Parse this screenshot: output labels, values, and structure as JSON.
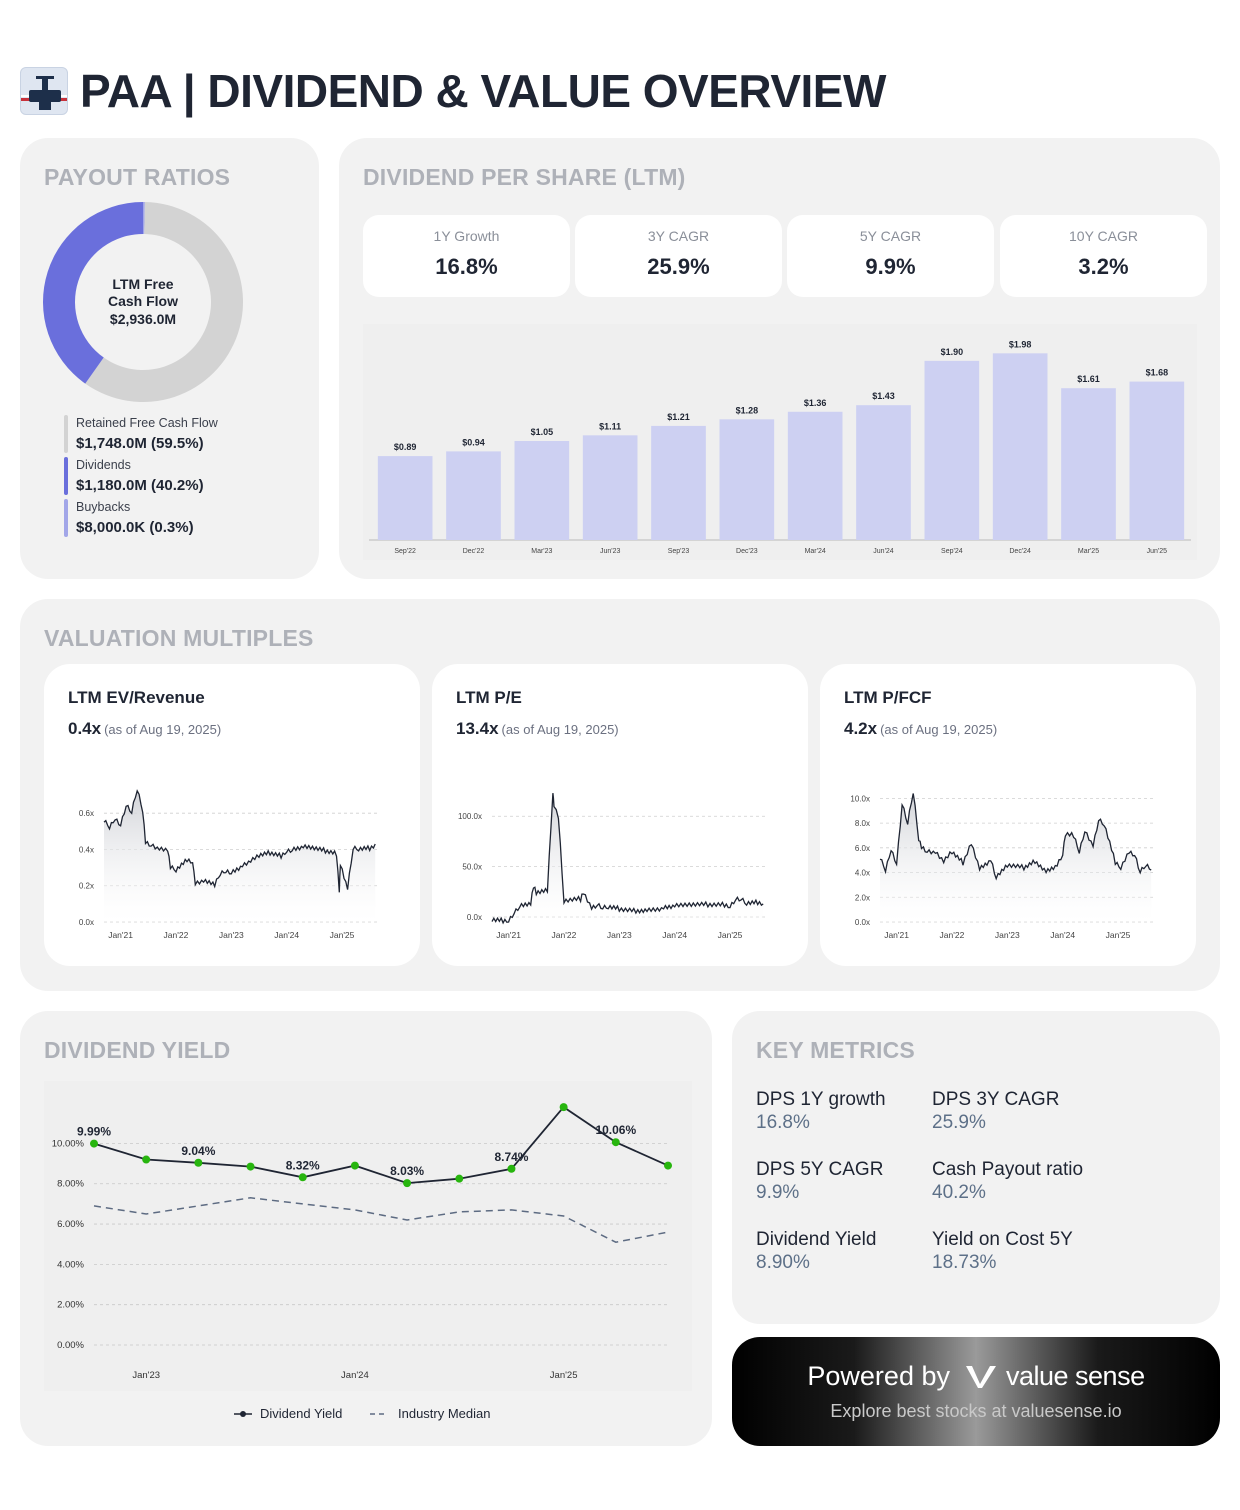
{
  "header": {
    "title": "PAA | DIVIDEND & VALUE OVERVIEW",
    "logo_icon": "pipeline-logo-icon"
  },
  "payout": {
    "title": "PAYOUT RATIOS",
    "center_label_1": "LTM Free",
    "center_label_2": "Cash Flow",
    "center_value": "$2,936.0M",
    "items": [
      {
        "label": "Retained Free Cash Flow",
        "value": "$1,748.0M (59.5%)",
        "pct": 59.5,
        "color": "#d3d3d3"
      },
      {
        "label": "Dividends",
        "value": "$1,180.0M (40.2%)",
        "pct": 40.2,
        "color": "#6a6fdc"
      },
      {
        "label": "Buybacks",
        "value": "$8,000.0K (0.3%)",
        "pct": 0.3,
        "color": "#a2a6e8"
      }
    ]
  },
  "dps": {
    "title": "DIVIDEND PER SHARE (LTM)",
    "stats": [
      {
        "label": "1Y Growth",
        "value": "16.8%"
      },
      {
        "label": "3Y CAGR",
        "value": "25.9%"
      },
      {
        "label": "5Y CAGR",
        "value": "9.9%"
      },
      {
        "label": "10Y CAGR",
        "value": "3.2%"
      }
    ]
  },
  "valuation": {
    "title": "VALUATION MULTIPLES",
    "cards": [
      {
        "title": "LTM EV/Revenue",
        "value": "0.4x",
        "asof": "(as of Aug 19, 2025)"
      },
      {
        "title": "LTM P/E",
        "value": "13.4x",
        "asof": "(as of Aug 19, 2025)"
      },
      {
        "title": "LTM P/FCF",
        "value": "4.2x",
        "asof": "(as of Aug 19, 2025)"
      }
    ]
  },
  "yield": {
    "title": "DIVIDEND YIELD"
  },
  "keymetrics": {
    "title": "KEY METRICS",
    "items": [
      {
        "label": "DPS 1Y growth",
        "value": "16.8%"
      },
      {
        "label": "DPS 3Y CAGR",
        "value": "25.9%"
      },
      {
        "label": "DPS 5Y CAGR",
        "value": "9.9%"
      },
      {
        "label": "Cash Payout ratio",
        "value": "40.2%"
      },
      {
        "label": "Dividend Yield",
        "value": "8.90%"
      },
      {
        "label": "Yield on Cost 5Y",
        "value": "18.73%"
      }
    ]
  },
  "powered": {
    "prefix": "Powered by",
    "brand": "value sense",
    "sub": "Explore best stocks at valuesense.io"
  },
  "chart_data": [
    {
      "type": "bar",
      "categories": [
        "Sep'22",
        "Dec'22",
        "Mar'23",
        "Jun'23",
        "Sep'23",
        "Dec'23",
        "Mar'24",
        "Jun'24",
        "Sep'24",
        "Dec'24",
        "Mar'25",
        "Jun'25"
      ],
      "values": [
        0.89,
        0.94,
        1.05,
        1.11,
        1.21,
        1.28,
        1.36,
        1.43,
        1.9,
        1.98,
        1.61,
        1.68
      ],
      "labels": [
        "$0.89",
        "$0.94",
        "$1.05",
        "$1.11",
        "$1.21",
        "$1.28",
        "$1.36",
        "$1.43",
        "$1.90",
        "$1.98",
        "$1.61",
        "$1.68"
      ],
      "ylim": [
        0,
        2.1
      ],
      "color": "#cdd0f2"
    },
    {
      "type": "line",
      "x_ticks": [
        "Jan'21",
        "Jan'22",
        "Jan'23",
        "Jan'24",
        "Jan'25"
      ],
      "y_ticks": [
        "0.0x",
        "0.2x",
        "0.4x",
        "0.6x"
      ],
      "y_tick_values": [
        0,
        0.2,
        0.4,
        0.6
      ],
      "ylim": [
        0,
        0.75
      ],
      "xlim": [
        2020.7,
        2025.65
      ],
      "grid": true,
      "series": [
        {
          "x": [
            2020.7,
            2020.8,
            2020.9,
            2021.0,
            2021.1,
            2021.2,
            2021.3,
            2021.4,
            2021.45,
            2021.55,
            2021.7,
            2021.85,
            2021.9,
            2022.0,
            2022.2,
            2022.3,
            2022.35,
            2022.5,
            2022.7,
            2022.8,
            2022.9,
            2023.0,
            2023.2,
            2023.35,
            2023.5,
            2023.7,
            2023.9,
            2024.0,
            2024.1,
            2024.3,
            2024.5,
            2024.7,
            2024.9,
            2024.95,
            2024.97,
            2025.1,
            2025.2,
            2025.3,
            2025.5,
            2025.6
          ],
          "y": [
            0.56,
            0.53,
            0.58,
            0.54,
            0.64,
            0.6,
            0.73,
            0.62,
            0.45,
            0.43,
            0.4,
            0.39,
            0.3,
            0.29,
            0.35,
            0.34,
            0.21,
            0.22,
            0.2,
            0.27,
            0.29,
            0.28,
            0.31,
            0.33,
            0.36,
            0.38,
            0.37,
            0.4,
            0.4,
            0.41,
            0.4,
            0.39,
            0.38,
            0.18,
            0.32,
            0.18,
            0.4,
            0.4,
            0.41,
            0.43
          ]
        }
      ]
    },
    {
      "type": "line",
      "x_ticks": [
        "Jan'21",
        "Jan'22",
        "Jan'23",
        "Jan'24",
        "Jan'25"
      ],
      "y_ticks": [
        "0.0x",
        "50.0x",
        "100.0x"
      ],
      "y_tick_values": [
        0,
        50,
        100
      ],
      "ylim": [
        -5,
        130
      ],
      "xlim": [
        2020.7,
        2025.65
      ],
      "grid": true,
      "series": [
        {
          "x": [
            2020.7,
            2020.9,
            2021.0,
            2021.1,
            2021.2,
            2021.4,
            2021.45,
            2021.5,
            2021.7,
            2021.8,
            2021.82,
            2021.9,
            2022.0,
            2022.3,
            2022.35,
            2022.5,
            2022.6,
            2022.7,
            2022.8,
            2023.0,
            2023.3,
            2023.5,
            2023.8,
            2024.0,
            2024.3,
            2024.6,
            2024.9,
            2025.0,
            2025.1,
            2025.2,
            2025.3,
            2025.5,
            2025.6
          ],
          "y": [
            -3,
            -3,
            -2,
            5,
            10,
            12,
            30,
            25,
            28,
            125,
            110,
            98,
            15,
            18,
            26,
            10,
            12,
            8,
            9,
            8,
            7,
            8,
            9,
            10,
            11,
            12,
            13,
            12,
            18,
            17,
            12,
            14,
            13
          ]
        }
      ]
    },
    {
      "type": "line",
      "x_ticks": [
        "Jan'21",
        "Jan'22",
        "Jan'23",
        "Jan'24",
        "Jan'25"
      ],
      "y_ticks": [
        "0.0x",
        "2.0x",
        "4.0x",
        "6.0x",
        "8.0x",
        "10.0x"
      ],
      "y_tick_values": [
        0,
        2,
        4,
        6,
        8,
        10
      ],
      "ylim": [
        0,
        11
      ],
      "xlim": [
        2020.7,
        2025.65
      ],
      "grid": true,
      "series": [
        {
          "x": [
            2020.7,
            2020.8,
            2020.9,
            2021.0,
            2021.1,
            2021.2,
            2021.3,
            2021.4,
            2021.45,
            2021.55,
            2021.7,
            2021.85,
            2022.0,
            2022.2,
            2022.35,
            2022.5,
            2022.7,
            2022.8,
            2023.0,
            2023.3,
            2023.5,
            2023.7,
            2023.9,
            2024.0,
            2024.05,
            2024.2,
            2024.3,
            2024.4,
            2024.55,
            2024.65,
            2024.75,
            2024.95,
            2025.05,
            2025.2,
            2025.3,
            2025.4,
            2025.5,
            2025.6
          ],
          "y": [
            5.2,
            4.3,
            6.0,
            4.8,
            9.5,
            7.9,
            10.5,
            6.8,
            6.2,
            5.8,
            5.6,
            4.8,
            5.6,
            4.8,
            6.5,
            4.4,
            5.0,
            3.5,
            4.5,
            4.4,
            5.0,
            4.2,
            4.6,
            5.4,
            7.0,
            7.0,
            5.8,
            7.5,
            6.2,
            8.2,
            7.8,
            4.8,
            4.5,
            5.8,
            5.5,
            4.0,
            4.5,
            4.2
          ]
        }
      ]
    },
    {
      "type": "line",
      "x_ticks": [
        "Jan'23",
        "Jan'24",
        "Jan'25"
      ],
      "x_tick_positions": [
        1,
        5,
        9
      ],
      "y_ticks": [
        "0.00%",
        "2.00%",
        "4.00%",
        "6.00%",
        "8.00%",
        "10.00%"
      ],
      "y_tick_values": [
        0,
        2,
        4,
        6,
        8,
        10
      ],
      "ylim": [
        0,
        12.5
      ],
      "grid": true,
      "legend": "bottom",
      "series": [
        {
          "name": "Dividend Yield",
          "color": "#1f2533",
          "x": [
            0,
            1,
            2,
            3,
            4,
            5,
            6,
            7,
            8,
            9,
            10,
            11
          ],
          "values": [
            9.99,
            9.2,
            9.04,
            8.85,
            8.32,
            8.9,
            8.03,
            8.25,
            8.74,
            11.8,
            10.06,
            8.9
          ],
          "labels": [
            "9.99%",
            "",
            "9.04%",
            "",
            "8.32%",
            "",
            "8.03%",
            "",
            "8.74%",
            "",
            "10.06%",
            ""
          ]
        },
        {
          "name": "Industry Median",
          "color": "#5d6b82",
          "dashed": true,
          "x": [
            0,
            1,
            2,
            3,
            4,
            5,
            6,
            7,
            8,
            9,
            10,
            11
          ],
          "values": [
            6.9,
            6.5,
            6.9,
            7.3,
            7.0,
            6.7,
            6.2,
            6.6,
            6.7,
            6.4,
            5.1,
            5.6
          ]
        }
      ]
    }
  ]
}
